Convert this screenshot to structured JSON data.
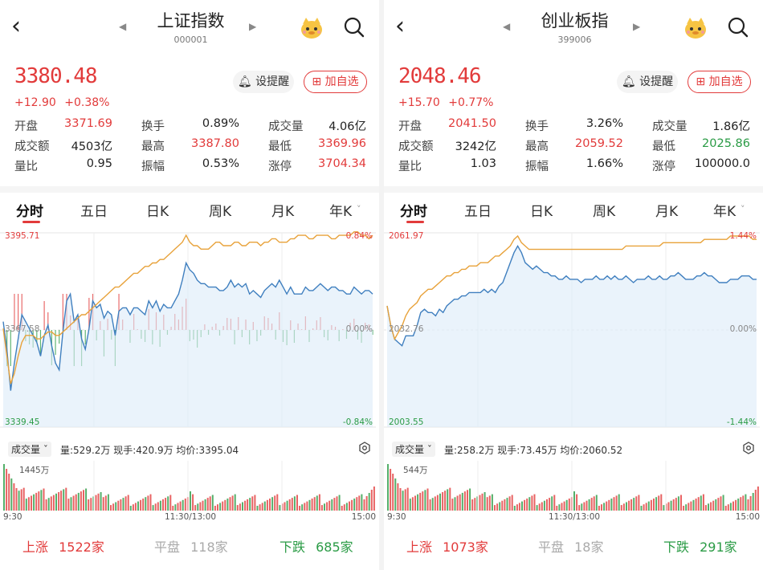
{
  "colors": {
    "up": "#e23b3b",
    "down": "#2a9b45",
    "price_line": "#3f7fbf",
    "avg_line": "#e8a23a"
  },
  "panels": [
    {
      "title": "上证指数",
      "code": "000001",
      "price": "3380.48",
      "change": "+12.90",
      "change_pct": "+0.38%",
      "remind_label": "设提醒",
      "fav_label": "加自选",
      "stats": [
        [
          {
            "label": "开盘",
            "value": "3371.69",
            "color": "red"
          },
          {
            "label": "换手",
            "value": "0.89%",
            "color": "dark"
          },
          {
            "label": "成交量",
            "value": "4.06亿",
            "color": "dark"
          }
        ],
        [
          {
            "label": "成交额",
            "value": "4503亿",
            "color": "dark"
          },
          {
            "label": "最高",
            "value": "3387.80",
            "color": "red"
          },
          {
            "label": "最低",
            "value": "3369.96",
            "color": "red"
          }
        ],
        [
          {
            "label": "量比",
            "value": "0.95",
            "color": "dark"
          },
          {
            "label": "振幅",
            "value": "0.53%",
            "color": "dark"
          },
          {
            "label": "涨停",
            "value": "3704.34",
            "color": "red"
          }
        ]
      ],
      "tabs": [
        "分时",
        "五日",
        "日K",
        "周K",
        "月K",
        "年K"
      ],
      "chart": {
        "y_top": "3395.71",
        "y_mid": "3367.58",
        "y_bottom": "3339.45",
        "pct_top": "0.84%",
        "pct_mid": "0.00%",
        "pct_bottom": "-0.84%",
        "price_series": [
          3370,
          3362,
          3350,
          3358,
          3365,
          3372,
          3370,
          3368,
          3366,
          3364,
          3360,
          3366,
          3369,
          3363,
          3358,
          3356,
          3367,
          3376,
          3378,
          3370,
          3372,
          3365,
          3362,
          3368,
          3376,
          3374,
          3375,
          3371,
          3373,
          3372,
          3366,
          3373,
          3374,
          3374,
          3372,
          3374,
          3374,
          3373,
          3372,
          3376,
          3374,
          3376,
          3373,
          3375,
          3374,
          3374,
          3376,
          3378,
          3382,
          3387,
          3385,
          3384,
          3382,
          3381,
          3381,
          3380,
          3380,
          3380,
          3379,
          3379,
          3380,
          3382,
          3380,
          3381,
          3380,
          3381,
          3378,
          3379,
          3378,
          3377,
          3379,
          3380,
          3381,
          3380,
          3382,
          3380,
          3378,
          3380,
          3378,
          3378,
          3378,
          3380,
          3379,
          3379,
          3380,
          3381,
          3380,
          3379,
          3380,
          3380,
          3379,
          3379,
          3378,
          3378,
          3380,
          3379,
          3378,
          3379,
          3379,
          3378
        ],
        "avg_series": [
          3368,
          3360,
          3352,
          3355,
          3360,
          3364,
          3366,
          3366,
          3366,
          3365,
          3365,
          3366,
          3367,
          3367,
          3366,
          3366,
          3367,
          3368,
          3369,
          3370,
          3371,
          3372,
          3372,
          3373,
          3374,
          3375,
          3376,
          3377,
          3378,
          3379,
          3380,
          3380,
          3381,
          3382,
          3383,
          3384,
          3384,
          3385,
          3386,
          3386,
          3387,
          3387,
          3388,
          3388,
          3389,
          3390,
          3391,
          3392,
          3393,
          3395,
          3393,
          3392,
          3392,
          3391,
          3391,
          3391,
          3392,
          3393,
          3393,
          3392,
          3392,
          3392,
          3393,
          3393,
          3392,
          3392,
          3393,
          3393,
          3393,
          3392,
          3393,
          3393,
          3394,
          3394,
          3393,
          3393,
          3393,
          3394,
          3394,
          3395,
          3395,
          3395,
          3394,
          3394,
          3395,
          3395,
          3395,
          3395,
          3394,
          3394,
          3395,
          3395,
          3395,
          3395,
          3396,
          3396,
          3395,
          3395,
          3394,
          3395
        ]
      },
      "vol_label": "成交量",
      "vol_info": "量:529.2万  现手:420.9万  均价:3395.04",
      "vol_max": "1445万",
      "time_start": "9:30",
      "time_mid": "11:30/13:00",
      "time_end": "15:00",
      "up_label": "上涨",
      "up_count": "1522家",
      "flat_label": "平盘",
      "flat_count": "118家",
      "down_label": "下跌",
      "down_count": "685家"
    },
    {
      "title": "创业板指",
      "code": "399006",
      "price": "2048.46",
      "change": "+15.70",
      "change_pct": "+0.77%",
      "remind_label": "设提醒",
      "fav_label": "加自选",
      "stats": [
        [
          {
            "label": "开盘",
            "value": "2041.50",
            "color": "red"
          },
          {
            "label": "换手",
            "value": "3.26%",
            "color": "dark"
          },
          {
            "label": "成交量",
            "value": "1.86亿",
            "color": "dark"
          }
        ],
        [
          {
            "label": "成交额",
            "value": "3242亿",
            "color": "dark"
          },
          {
            "label": "最高",
            "value": "2059.52",
            "color": "red"
          },
          {
            "label": "最低",
            "value": "2025.86",
            "color": "green"
          }
        ],
        [
          {
            "label": "量比",
            "value": "1.03",
            "color": "dark"
          },
          {
            "label": "振幅",
            "value": "1.66%",
            "color": "dark"
          },
          {
            "label": "涨停",
            "value": "100000.0",
            "color": "dark"
          }
        ]
      ],
      "tabs": [
        "分时",
        "五日",
        "日K",
        "周K",
        "月K",
        "年K"
      ],
      "chart": {
        "y_top": "2061.97",
        "y_mid": "2032.76",
        "y_bottom": "2003.55",
        "pct_top": "1.44%",
        "pct_mid": "0.00%",
        "pct_bottom": "-1.44%",
        "price_series": [
          2040,
          2034,
          2030,
          2029,
          2028,
          2031,
          2031,
          2031,
          2034,
          2038,
          2039,
          2038,
          2038,
          2037,
          2039,
          2038,
          2040,
          2041,
          2042,
          2042,
          2043,
          2043,
          2044,
          2044,
          2044,
          2044,
          2045,
          2044,
          2045,
          2044,
          2046,
          2047,
          2050,
          2053,
          2056,
          2058,
          2056,
          2053,
          2052,
          2051,
          2052,
          2051,
          2050,
          2050,
          2049,
          2049,
          2048,
          2048,
          2049,
          2048,
          2048,
          2048,
          2047,
          2048,
          2048,
          2048,
          2049,
          2048,
          2048,
          2049,
          2048,
          2049,
          2048,
          2048,
          2049,
          2048,
          2047,
          2048,
          2048,
          2048,
          2049,
          2048,
          2048,
          2049,
          2048,
          2048,
          2049,
          2049,
          2050,
          2049,
          2048,
          2048,
          2048,
          2049,
          2049,
          2050,
          2049,
          2049,
          2048,
          2047,
          2047,
          2047,
          2048,
          2048,
          2048,
          2049,
          2049,
          2049,
          2048,
          2048
        ],
        "avg_series": [
          2040,
          2034,
          2030,
          2032,
          2034,
          2037,
          2039,
          2040,
          2041,
          2043,
          2044,
          2045,
          2045,
          2046,
          2047,
          2048,
          2049,
          2049,
          2050,
          2050,
          2051,
          2051,
          2052,
          2052,
          2052,
          2053,
          2053,
          2053,
          2054,
          2055,
          2055,
          2056,
          2057,
          2058,
          2060,
          2061,
          2059,
          2058,
          2057,
          2057,
          2057,
          2057,
          2057,
          2057,
          2057,
          2057,
          2057,
          2057,
          2057,
          2057,
          2057,
          2057,
          2057,
          2057,
          2057,
          2057,
          2057,
          2057,
          2057,
          2057,
          2057,
          2057,
          2057,
          2057,
          2058,
          2058,
          2058,
          2058,
          2058,
          2058,
          2058,
          2058,
          2058,
          2058,
          2059,
          2059,
          2059,
          2059,
          2059,
          2059,
          2059,
          2059,
          2059,
          2059,
          2059,
          2060,
          2060,
          2060,
          2060,
          2060,
          2060,
          2060,
          2061,
          2061,
          2061,
          2061,
          2061,
          2061,
          2060,
          2060
        ]
      },
      "vol_label": "成交量",
      "vol_info": "量:258.2万  现手:73.45万  均价:2060.52",
      "vol_max": "544万",
      "time_start": "9:30",
      "time_mid": "11:30/13:00",
      "time_end": "15:00",
      "up_label": "上涨",
      "up_count": "1073家",
      "flat_label": "平盘",
      "flat_count": "18家",
      "down_label": "下跌",
      "down_count": "291家"
    }
  ]
}
